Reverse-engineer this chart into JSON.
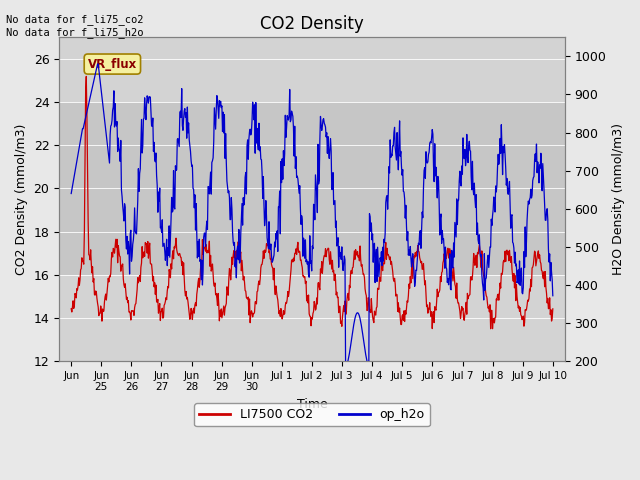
{
  "title": "CO2 Density",
  "xlabel": "Time",
  "ylabel_left": "CO2 Density (mmol/m3)",
  "ylabel_right": "H2O Density (mmol/m3)",
  "top_text": "No data for f_li75_co2\nNo data for f_li75_h2o",
  "annotation_text": "VR_flux",
  "ylim_left": [
    12,
    27
  ],
  "ylim_right": [
    200,
    1050
  ],
  "bg_color": "#e8e8e8",
  "plot_bg_color": "#d3d3d3",
  "co2_color": "#cc0000",
  "h2o_color": "#0000cc",
  "legend_co2": "LI7500 CO2",
  "legend_h2o": "op_h2o",
  "xtick_labels": [
    "Jun",
    "Jun\n25",
    "Jun\n26",
    "Jun\n27",
    "Jun\n28",
    "Jun\n29",
    "Jun\n30",
    "Jul 1",
    "Jul 2",
    "Jul 3",
    "Jul 4",
    "Jul 5",
    "Jul 6",
    "Jul 7",
    "Jul 8",
    "Jul 9",
    "Jul 10"
  ],
  "yticks_left": [
    12,
    14,
    16,
    18,
    20,
    22,
    24,
    26
  ],
  "yticks_right": [
    200,
    300,
    400,
    500,
    600,
    700,
    800,
    900,
    1000
  ]
}
